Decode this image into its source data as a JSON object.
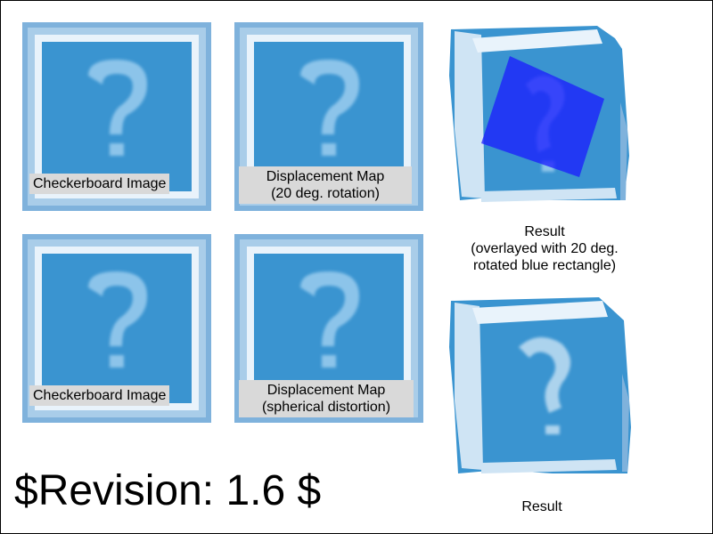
{
  "panels": [
    {
      "id": "checker-1",
      "caption": "Checkerboard Image"
    },
    {
      "id": "disp-1",
      "caption_line1": "Displacement Map",
      "caption_line2": "(20 deg. rotation)"
    },
    {
      "id": "result-1",
      "label_line1": "Result",
      "label_line2": "(overlayed with 20 deg.",
      "label_line3": "rotated blue rectangle)"
    },
    {
      "id": "checker-2",
      "caption": "Checkerboard Image"
    },
    {
      "id": "disp-2",
      "caption_line1": "Displacement Map",
      "caption_line2": "(spherical distortion)"
    },
    {
      "id": "result-2",
      "label": "Result"
    }
  ],
  "revision": "$Revision: 1.6 $",
  "colors": {
    "tile_border": "#7fb2dc",
    "tile_inner": "#3a94d0",
    "tile_highlight": "#e9f3fb",
    "question_mark": "#8cc4ea",
    "overlay_rect": "#1b1bff",
    "caption_bg": "#d9d9d9"
  },
  "icons": [
    "question-mark-icon"
  ]
}
